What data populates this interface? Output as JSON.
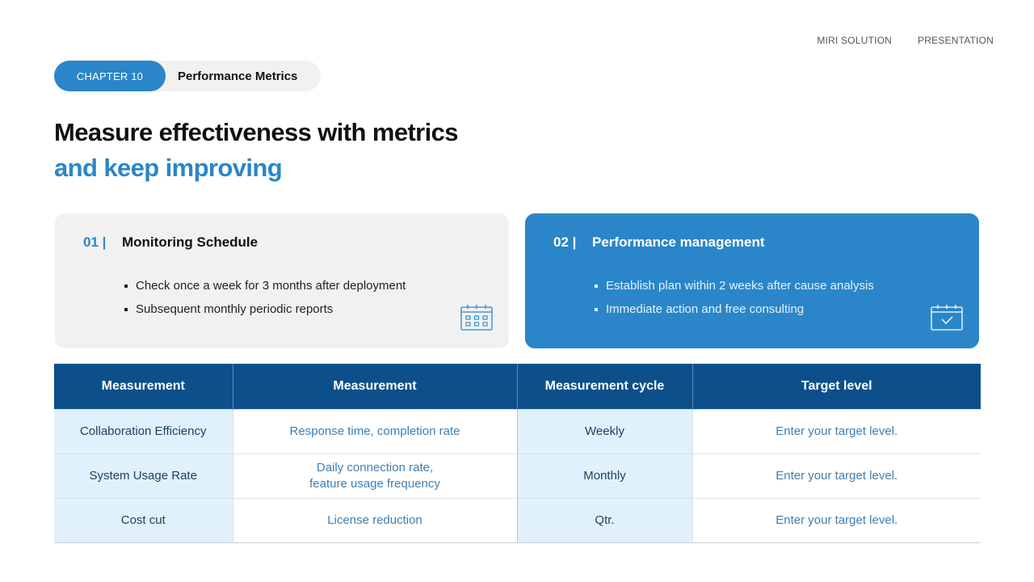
{
  "header": {
    "nav": [
      "MIRI SOLUTION",
      "PRESENTATION"
    ]
  },
  "chapter": {
    "tag": "CHAPTER 10",
    "name": "Performance Metrics"
  },
  "title": {
    "line1": "Measure effectiveness with metrics",
    "line2": "and keep improving"
  },
  "cards": [
    {
      "number": "01 |",
      "title": "Monitoring Schedule",
      "bullets": [
        "Check once a week for 3 months after deployment",
        "Subsequent monthly periodic reports"
      ],
      "icon": "calendar-grid-icon"
    },
    {
      "number": "02 |",
      "title": "Performance management",
      "bullets": [
        "Establish plan within 2 weeks after cause analysis",
        "Immediate action and free consulting"
      ],
      "icon": "calendar-check-icon"
    }
  ],
  "table": {
    "headers": [
      "Measurement",
      "Measurement",
      "Measurement cycle",
      "Target level"
    ],
    "rows": [
      {
        "metric": "Collaboration Efficiency",
        "measurement": [
          "Response time, completion rate"
        ],
        "cycle": "Weekly",
        "target": "Enter your target level."
      },
      {
        "metric": "System Usage Rate",
        "measurement": [
          "Daily connection rate,",
          "feature usage frequency"
        ],
        "cycle": "Monthly",
        "target": "Enter your target level."
      },
      {
        "metric": "Cost cut",
        "measurement": [
          "License reduction"
        ],
        "cycle": "Qtr.",
        "target": "Enter your target level."
      }
    ]
  },
  "colors": {
    "accent": "#2a86c8",
    "table_header": "#0d4f8b",
    "row_shade": "#e1f1fc"
  }
}
